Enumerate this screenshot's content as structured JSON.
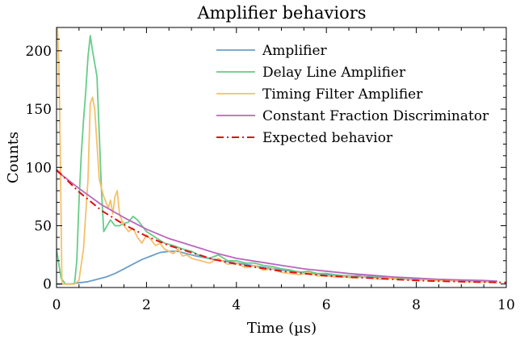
{
  "chart_data": {
    "type": "line",
    "title": "Amplifier behaviors",
    "xlabel": "Time (µs)",
    "ylabel": "Counts",
    "xlim": [
      0,
      10
    ],
    "ylim": [
      -3,
      220
    ],
    "xticks": [
      0,
      2,
      4,
      6,
      8,
      10
    ],
    "yticks": [
      0,
      50,
      100,
      150,
      200
    ],
    "grid": false,
    "legend_position": "top-right",
    "series": [
      {
        "name": "Amplifier",
        "color": "#6a9fcb",
        "style": "solid",
        "x": [
          0.0,
          0.3,
          0.5,
          0.7,
          0.9,
          1.1,
          1.3,
          1.5,
          1.7,
          1.9,
          2.1,
          2.3,
          2.5,
          2.7,
          2.9,
          3.1,
          3.5,
          4.0,
          4.5,
          5.0,
          5.5,
          6.0,
          6.5,
          7.0,
          7.5,
          8.0,
          8.5,
          9.0,
          9.5,
          9.8
        ],
        "y": [
          0,
          0,
          1,
          2,
          4,
          6,
          9,
          13,
          17,
          21,
          24,
          27,
          28,
          28,
          26,
          24,
          21,
          18,
          15,
          12,
          10,
          8,
          7,
          6,
          5,
          4,
          3.5,
          3,
          2.5,
          2
        ]
      },
      {
        "name": "Delay Line Amplifier",
        "color": "#66cc88",
        "style": "solid",
        "x": [
          0.0,
          0.1,
          0.2,
          0.3,
          0.4,
          0.45,
          0.5,
          0.55,
          0.6,
          0.65,
          0.7,
          0.75,
          0.8,
          0.9,
          1.0,
          1.05,
          1.2,
          1.3,
          1.4,
          1.5,
          1.6,
          1.7,
          1.8,
          1.9,
          2.0,
          2.2,
          2.4,
          2.6,
          2.8,
          3.0,
          3.2,
          3.4,
          3.6,
          3.8,
          4.0,
          4.2,
          4.4,
          4.6,
          4.8,
          5.0,
          5.2,
          5.4,
          5.6,
          5.8,
          6.0,
          6.2,
          6.4,
          6.6,
          6.8,
          7.0,
          7.2,
          7.4,
          7.6,
          7.8,
          8.0,
          8.2,
          8.4,
          8.6,
          8.8,
          9.0,
          9.2,
          9.4,
          9.6,
          9.8
        ],
        "y": [
          30,
          5,
          0,
          0,
          0,
          20,
          70,
          110,
          140,
          165,
          195,
          213,
          200,
          178,
          80,
          45,
          55,
          50,
          50,
          52,
          53,
          58,
          55,
          50,
          45,
          40,
          35,
          33,
          30,
          28,
          24,
          22,
          25,
          20,
          20,
          18,
          18,
          16,
          15,
          13,
          12,
          10,
          11,
          9,
          9,
          8,
          7,
          7,
          8,
          7,
          6,
          5,
          5,
          5,
          5,
          4,
          4,
          4,
          3,
          3,
          3,
          2,
          2,
          2
        ]
      },
      {
        "name": "Timing Filter Amplifier",
        "color": "#f5c06a",
        "style": "solid",
        "x": [
          0.0,
          0.02,
          0.05,
          0.08,
          0.12,
          0.2,
          0.3,
          0.4,
          0.5,
          0.6,
          0.7,
          0.75,
          0.8,
          0.85,
          0.9,
          0.95,
          1.0,
          1.05,
          1.1,
          1.15,
          1.2,
          1.25,
          1.3,
          1.35,
          1.4,
          1.45,
          1.5,
          1.6,
          1.7,
          1.8,
          1.9,
          2.0,
          2.1,
          2.2,
          2.3,
          2.4,
          2.5,
          2.6,
          2.7,
          2.8,
          2.9,
          3.0,
          3.2,
          3.4,
          3.6,
          3.8,
          4.0,
          4.2,
          4.4,
          4.6,
          4.8,
          5.0,
          5.2,
          5.4,
          5.6,
          5.8,
          6.0,
          6.2,
          6.4,
          6.6,
          6.8,
          7.0,
          7.2,
          7.4,
          7.6,
          7.8,
          8.0,
          8.2,
          8.4,
          8.6,
          8.8,
          9.0,
          9.2,
          9.4,
          9.6,
          9.8
        ],
        "y": [
          220,
          220,
          190,
          120,
          0,
          0,
          0,
          0,
          3,
          30,
          90,
          155,
          160,
          150,
          120,
          90,
          82,
          75,
          70,
          65,
          72,
          60,
          75,
          80,
          60,
          55,
          50,
          45,
          48,
          40,
          35,
          42,
          38,
          33,
          35,
          30,
          28,
          26,
          30,
          24,
          25,
          22,
          20,
          18,
          22,
          17,
          18,
          14,
          16,
          12,
          13,
          10,
          9,
          8,
          10,
          7,
          7,
          6,
          6,
          5,
          6,
          5,
          4,
          5,
          4,
          4,
          3,
          4,
          3,
          3,
          3,
          2,
          2,
          2,
          2,
          1
        ]
      },
      {
        "name": "Constant Fraction Discriminator",
        "color": "#bb66bb",
        "style": "solid",
        "x": [
          0.0,
          0.5,
          1.0,
          1.5,
          2.0,
          2.5,
          3.0,
          3.5,
          4.0,
          4.5,
          5.0,
          5.5,
          6.0,
          6.5,
          7.0,
          7.5,
          8.0,
          8.5,
          9.0,
          9.5,
          9.8
        ],
        "y": [
          97,
          82,
          68,
          57,
          47,
          39,
          33,
          27,
          22,
          19,
          16,
          13,
          11,
          9,
          7.5,
          6,
          5,
          4,
          3.5,
          3,
          2.5
        ]
      },
      {
        "name": "Expected behavior",
        "color": "#dd1111",
        "style": "dashdot",
        "x": [
          0.0,
          0.5,
          1.0,
          1.5,
          2.0,
          2.5,
          3.0,
          3.5,
          4.0,
          4.5,
          5.0,
          5.5,
          6.0,
          6.5,
          7.0,
          7.5,
          8.0,
          8.5,
          9.0,
          9.5,
          10.0
        ],
        "y": [
          98,
          79,
          63,
          51,
          41,
          33,
          27,
          21,
          17,
          14,
          11,
          9,
          7,
          6,
          5,
          4,
          3,
          2.5,
          2,
          1.6,
          1.3
        ]
      }
    ]
  }
}
